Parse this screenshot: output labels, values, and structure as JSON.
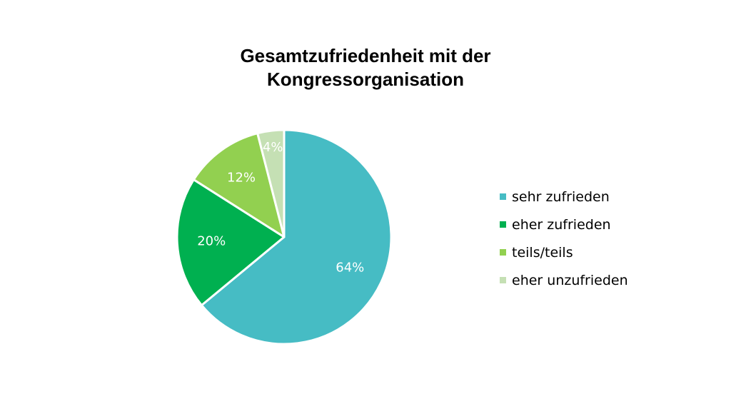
{
  "chart_data": {
    "type": "pie",
    "title_lines": [
      "Gesamtzufriedenheit mit der",
      "Kongressorganisation"
    ],
    "categories": [
      "sehr zufrieden",
      "eher zufrieden",
      "teils/teils",
      "eher unzufrieden"
    ],
    "values": [
      64,
      20,
      12,
      4
    ],
    "value_labels": [
      "64%",
      "20%",
      "12%",
      "4%"
    ],
    "colors": [
      "#46bcc4",
      "#00b050",
      "#92d050",
      "#c5e0b4"
    ],
    "legend_position": "right"
  }
}
